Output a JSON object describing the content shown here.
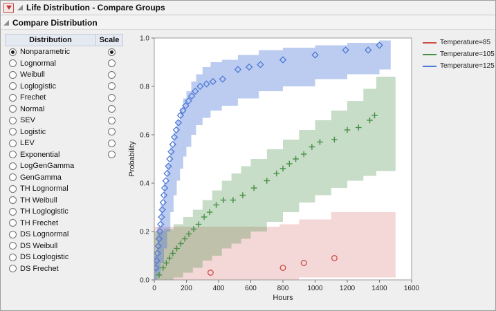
{
  "outline": {
    "root_title": "Life Distribution - Compare Groups",
    "section_title": "Compare Distribution"
  },
  "table": {
    "columns": [
      "Distribution",
      "Scale"
    ],
    "rows": [
      {
        "label": "Nonparametric",
        "selected": true,
        "has_scale": true,
        "scale_selected": true
      },
      {
        "label": "Lognormal",
        "selected": false,
        "has_scale": true,
        "scale_selected": false
      },
      {
        "label": "Weibull",
        "selected": false,
        "has_scale": true,
        "scale_selected": false
      },
      {
        "label": "Loglogistic",
        "selected": false,
        "has_scale": true,
        "scale_selected": false
      },
      {
        "label": "Frechet",
        "selected": false,
        "has_scale": true,
        "scale_selected": false
      },
      {
        "label": "Normal",
        "selected": false,
        "has_scale": true,
        "scale_selected": false
      },
      {
        "label": "SEV",
        "selected": false,
        "has_scale": true,
        "scale_selected": false
      },
      {
        "label": "Logistic",
        "selected": false,
        "has_scale": true,
        "scale_selected": false
      },
      {
        "label": "LEV",
        "selected": false,
        "has_scale": true,
        "scale_selected": false
      },
      {
        "label": "Exponential",
        "selected": false,
        "has_scale": true,
        "scale_selected": false
      },
      {
        "label": "LogGenGamma",
        "selected": false,
        "has_scale": false,
        "scale_selected": false
      },
      {
        "label": "GenGamma",
        "selected": false,
        "has_scale": false,
        "scale_selected": false
      },
      {
        "label": "TH Lognormal",
        "selected": false,
        "has_scale": false,
        "scale_selected": false
      },
      {
        "label": "TH Weibull",
        "selected": false,
        "has_scale": false,
        "scale_selected": false
      },
      {
        "label": "TH Loglogistic",
        "selected": false,
        "has_scale": false,
        "scale_selected": false
      },
      {
        "label": "TH Frechet",
        "selected": false,
        "has_scale": false,
        "scale_selected": false
      },
      {
        "label": "DS Lognormal",
        "selected": false,
        "has_scale": false,
        "scale_selected": false
      },
      {
        "label": "DS Weibull",
        "selected": false,
        "has_scale": false,
        "scale_selected": false
      },
      {
        "label": "DS Loglogistic",
        "selected": false,
        "has_scale": false,
        "scale_selected": false
      },
      {
        "label": "DS Frechet",
        "selected": false,
        "has_scale": false,
        "scale_selected": false
      }
    ]
  },
  "chart_data": {
    "type": "scatter",
    "title": "",
    "xlabel": "Hours",
    "ylabel": "Probability",
    "xlim": [
      0,
      1600
    ],
    "ylim": [
      0,
      1
    ],
    "x_ticks": [
      0,
      200,
      400,
      600,
      800,
      1000,
      1200,
      1400,
      1600
    ],
    "y_ticks": [
      0.0,
      0.2,
      0.4,
      0.6,
      0.8,
      1.0
    ],
    "grid": false,
    "legend_position": "right-top",
    "series": [
      {
        "name": "Temperature=85",
        "marker": "circle",
        "color": "#CE4B48",
        "band_opacity": 0.22,
        "points": [
          [
            350,
            0.03
          ],
          [
            800,
            0.05
          ],
          [
            930,
            0.07
          ],
          [
            1120,
            0.09
          ]
        ],
        "band": [
          [
            0,
            0.0,
            0.22
          ],
          [
            780,
            0.0,
            0.23
          ],
          [
            900,
            0.01,
            0.25
          ],
          [
            1100,
            0.01,
            0.28
          ],
          [
            1500,
            0.01,
            0.28
          ]
        ]
      },
      {
        "name": "Temperature=105",
        "marker": "plus",
        "color": "#468F46",
        "band_opacity": 0.3,
        "points": [
          [
            30,
            0.02
          ],
          [
            55,
            0.05
          ],
          [
            75,
            0.07
          ],
          [
            95,
            0.09
          ],
          [
            115,
            0.11
          ],
          [
            140,
            0.13
          ],
          [
            165,
            0.15
          ],
          [
            190,
            0.17
          ],
          [
            215,
            0.19
          ],
          [
            245,
            0.21
          ],
          [
            275,
            0.23
          ],
          [
            310,
            0.26
          ],
          [
            345,
            0.28
          ],
          [
            385,
            0.31
          ],
          [
            430,
            0.33
          ],
          [
            490,
            0.33
          ],
          [
            550,
            0.35
          ],
          [
            620,
            0.38
          ],
          [
            700,
            0.41
          ],
          [
            760,
            0.44
          ],
          [
            800,
            0.46
          ],
          [
            840,
            0.48
          ],
          [
            880,
            0.5
          ],
          [
            930,
            0.52
          ],
          [
            980,
            0.55
          ],
          [
            1030,
            0.57
          ],
          [
            1120,
            0.58
          ],
          [
            1200,
            0.62
          ],
          [
            1270,
            0.63
          ],
          [
            1340,
            0.66
          ],
          [
            1370,
            0.68
          ]
        ],
        "band": [
          [
            0,
            0,
            0.2
          ],
          [
            60,
            0,
            0.21
          ],
          [
            120,
            0.01,
            0.23
          ],
          [
            180,
            0.03,
            0.26
          ],
          [
            240,
            0.05,
            0.29
          ],
          [
            300,
            0.08,
            0.33
          ],
          [
            360,
            0.1,
            0.37
          ],
          [
            420,
            0.13,
            0.41
          ],
          [
            480,
            0.15,
            0.44
          ],
          [
            540,
            0.17,
            0.47
          ],
          [
            600,
            0.2,
            0.5
          ],
          [
            700,
            0.24,
            0.54
          ],
          [
            800,
            0.28,
            0.58
          ],
          [
            900,
            0.32,
            0.62
          ],
          [
            1000,
            0.35,
            0.66
          ],
          [
            1100,
            0.38,
            0.7
          ],
          [
            1200,
            0.41,
            0.74
          ],
          [
            1300,
            0.43,
            0.79
          ],
          [
            1380,
            0.45,
            0.84
          ],
          [
            1500,
            0.45,
            0.84
          ]
        ]
      },
      {
        "name": "Temperature=125",
        "marker": "diamond",
        "color": "#4E79D8",
        "band_opacity": 0.38,
        "points": [
          [
            10,
            0.05
          ],
          [
            15,
            0.08
          ],
          [
            20,
            0.11
          ],
          [
            25,
            0.14
          ],
          [
            30,
            0.17
          ],
          [
            35,
            0.2
          ],
          [
            40,
            0.23
          ],
          [
            45,
            0.26
          ],
          [
            50,
            0.29
          ],
          [
            55,
            0.32
          ],
          [
            60,
            0.35
          ],
          [
            65,
            0.38
          ],
          [
            72,
            0.41
          ],
          [
            80,
            0.44
          ],
          [
            88,
            0.47
          ],
          [
            96,
            0.5
          ],
          [
            105,
            0.53
          ],
          [
            115,
            0.56
          ],
          [
            125,
            0.59
          ],
          [
            137,
            0.62
          ],
          [
            150,
            0.65
          ],
          [
            163,
            0.68
          ],
          [
            178,
            0.7
          ],
          [
            195,
            0.72
          ],
          [
            213,
            0.74
          ],
          [
            233,
            0.76
          ],
          [
            255,
            0.78
          ],
          [
            285,
            0.8
          ],
          [
            325,
            0.81
          ],
          [
            365,
            0.82
          ],
          [
            425,
            0.83
          ],
          [
            520,
            0.87
          ],
          [
            590,
            0.88
          ],
          [
            660,
            0.89
          ],
          [
            800,
            0.91
          ],
          [
            1000,
            0.93
          ],
          [
            1190,
            0.95
          ],
          [
            1330,
            0.95
          ],
          [
            1400,
            0.97
          ]
        ],
        "band": [
          [
            0,
            0,
            0.1
          ],
          [
            20,
            0.02,
            0.22
          ],
          [
            40,
            0.07,
            0.31
          ],
          [
            60,
            0.13,
            0.4
          ],
          [
            80,
            0.2,
            0.48
          ],
          [
            100,
            0.28,
            0.55
          ],
          [
            120,
            0.35,
            0.61
          ],
          [
            140,
            0.41,
            0.66
          ],
          [
            160,
            0.46,
            0.71
          ],
          [
            180,
            0.51,
            0.75
          ],
          [
            200,
            0.55,
            0.78
          ],
          [
            230,
            0.6,
            0.82
          ],
          [
            260,
            0.64,
            0.85
          ],
          [
            300,
            0.67,
            0.88
          ],
          [
            350,
            0.7,
            0.9
          ],
          [
            420,
            0.72,
            0.91
          ],
          [
            520,
            0.75,
            0.93
          ],
          [
            650,
            0.78,
            0.95
          ],
          [
            800,
            0.8,
            0.96
          ],
          [
            1000,
            0.83,
            0.97
          ],
          [
            1200,
            0.85,
            0.98
          ],
          [
            1400,
            0.87,
            0.99
          ],
          [
            1470,
            0.87,
            0.99
          ]
        ]
      }
    ]
  }
}
